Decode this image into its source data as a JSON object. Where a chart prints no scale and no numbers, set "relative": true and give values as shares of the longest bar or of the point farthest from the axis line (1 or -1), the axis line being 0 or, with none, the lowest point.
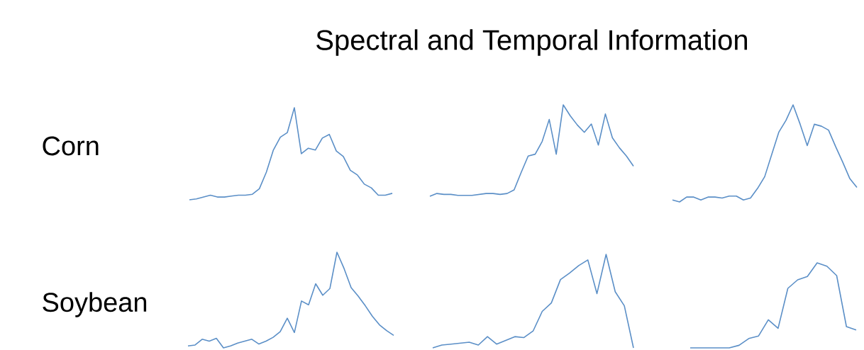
{
  "chart_data": [
    {
      "type": "line",
      "title": "Spectral and Temporal Information",
      "ylabel": "Corn",
      "relative": true,
      "color": "#5b8fc7",
      "categories": [
        null,
        null,
        null,
        null,
        null,
        null,
        null,
        null,
        null,
        null,
        null,
        null,
        null,
        null,
        null,
        null,
        null,
        null,
        null,
        null,
        null,
        null,
        null,
        null,
        null,
        null,
        null,
        null,
        null,
        null
      ],
      "values": [
        0,
        0.01,
        0.03,
        0.05,
        0.03,
        0.03,
        0.04,
        0.05,
        0.05,
        0.06,
        0.12,
        0.3,
        0.54,
        0.68,
        0.73,
        1,
        0.5,
        0.56,
        0.54,
        0.67,
        0.71,
        0.53,
        0.47,
        0.32,
        0.27,
        0.17,
        0.13,
        0.05,
        0.05,
        0.07
      ]
    },
    {
      "type": "line",
      "relative": true,
      "color": "#5b8fc7",
      "categories": [
        null,
        null,
        null,
        null,
        null,
        null,
        null,
        null,
        null,
        null,
        null,
        null,
        null,
        null,
        null,
        null,
        null,
        null,
        null,
        null,
        null,
        null,
        null,
        null,
        null,
        null,
        null,
        null,
        null,
        null
      ],
      "values": [
        0,
        0.03,
        0.02,
        0.02,
        0.01,
        0.01,
        0.01,
        0.02,
        0.03,
        0.03,
        0.02,
        0.03,
        0.07,
        0.26,
        0.44,
        0.46,
        0.6,
        0.84,
        0.46,
        1,
        0.88,
        0.78,
        0.7,
        0.79,
        0.56,
        0.9,
        0.64,
        0.53,
        0.44,
        0.33
      ]
    },
    {
      "type": "line",
      "relative": true,
      "color": "#5b8fc7",
      "categories": [
        null,
        null,
        null,
        null,
        null,
        null,
        null,
        null,
        null,
        null,
        null,
        null,
        null,
        null,
        null,
        null,
        null,
        null,
        null,
        null,
        null,
        null,
        null,
        null,
        null,
        null,
        null
      ],
      "values": [
        0.02,
        0,
        0.05,
        0.05,
        0.02,
        0.05,
        0.05,
        0.04,
        0.06,
        0.06,
        0.02,
        0.04,
        0.14,
        0.26,
        0.49,
        0.72,
        0.84,
        1,
        0.8,
        0.58,
        0.8,
        0.78,
        0.74,
        0.57,
        0.41,
        0.24,
        0.15
      ]
    },
    {
      "type": "line",
      "ylabel": "Soybean",
      "relative": true,
      "color": "#5b8fc7",
      "categories": [
        null,
        null,
        null,
        null,
        null,
        null,
        null,
        null,
        null,
        null,
        null,
        null,
        null,
        null,
        null,
        null,
        null,
        null,
        null,
        null,
        null,
        null,
        null,
        null,
        null,
        null,
        null,
        null,
        null,
        null
      ],
      "values": [
        0.02,
        0.03,
        0.09,
        0.07,
        0.1,
        0,
        0.02,
        0.05,
        0.07,
        0.09,
        0.04,
        0.07,
        0.11,
        0.17,
        0.31,
        0.16,
        0.49,
        0.45,
        0.67,
        0.55,
        0.62,
        1,
        0.83,
        0.63,
        0.54,
        0.44,
        0.33,
        0.24,
        0.18,
        0.13
      ]
    },
    {
      "type": "line",
      "relative": true,
      "color": "#5b8fc7",
      "categories": [
        null,
        null,
        null,
        null,
        null,
        null,
        null,
        null,
        null,
        null,
        null,
        null,
        null,
        null,
        null,
        null,
        null,
        null,
        null,
        null,
        null,
        null,
        null
      ],
      "values": [
        0,
        0.03,
        0.04,
        0.05,
        0.06,
        0.03,
        0.12,
        0.04,
        0.08,
        0.12,
        0.11,
        0.18,
        0.39,
        0.48,
        0.73,
        0.8,
        0.88,
        0.94,
        0.58,
        1,
        0.6,
        0.45,
        0
      ]
    },
    {
      "type": "line",
      "relative": true,
      "color": "#5b8fc7",
      "categories": [
        null,
        null,
        null,
        null,
        null,
        null,
        null,
        null,
        null,
        null,
        null,
        null,
        null,
        null,
        null,
        null,
        null,
        null
      ],
      "values": [
        0,
        0,
        0,
        0,
        0,
        0.03,
        0.11,
        0.14,
        0.33,
        0.23,
        0.7,
        0.8,
        0.84,
        1,
        0.96,
        0.85,
        0.25,
        0.21
      ]
    }
  ]
}
